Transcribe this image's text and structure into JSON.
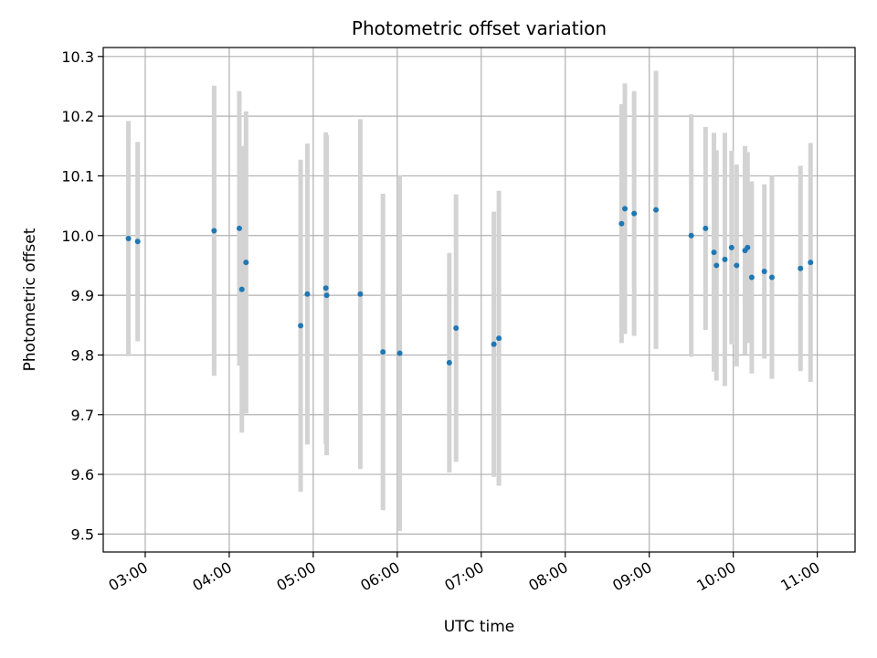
{
  "chart_data": {
    "type": "scatter",
    "title": "Photometric offset variation",
    "xlabel": "UTC time",
    "ylabel": "Photometric offset",
    "grid": true,
    "x_unit": "hours (UTC)",
    "xlim": [
      2.5,
      11.45
    ],
    "ylim": [
      9.47,
      10.315
    ],
    "x_ticks": [
      3,
      4,
      5,
      6,
      7,
      8,
      9,
      10,
      11
    ],
    "x_tick_labels": [
      "03:00",
      "04:00",
      "05:00",
      "06:00",
      "07:00",
      "08:00",
      "09:00",
      "10:00",
      "11:00"
    ],
    "y_ticks": [
      9.5,
      9.6,
      9.7,
      9.8,
      9.9,
      10.0,
      10.1,
      10.2,
      10.3
    ],
    "y_tick_labels": [
      "9.5",
      "9.6",
      "9.7",
      "9.8",
      "9.9",
      "10.0",
      "10.1",
      "10.2",
      "10.3"
    ],
    "colors": {
      "points": "#1f77b4",
      "errorbars": "#d3d3d3",
      "grid": "#b0b0b0"
    },
    "series": [
      {
        "points": [
          {
            "x": 2.8,
            "y": 9.995,
            "err": 0.197
          },
          {
            "x": 2.91,
            "y": 9.99,
            "err": 0.167
          },
          {
            "x": 3.82,
            "y": 10.008,
            "err": 0.243
          },
          {
            "x": 4.12,
            "y": 10.012,
            "err": 0.23
          },
          {
            "x": 4.15,
            "y": 9.91,
            "err": 0.24
          },
          {
            "x": 4.2,
            "y": 9.955,
            "err": 0.253
          },
          {
            "x": 4.85,
            "y": 9.849,
            "err": 0.278
          },
          {
            "x": 4.93,
            "y": 9.902,
            "err": 0.252
          },
          {
            "x": 5.15,
            "y": 9.912,
            "err": 0.261
          },
          {
            "x": 5.16,
            "y": 9.9,
            "err": 0.268
          },
          {
            "x": 5.56,
            "y": 9.902,
            "err": 0.293
          },
          {
            "x": 5.83,
            "y": 9.805,
            "err": 0.265
          },
          {
            "x": 6.03,
            "y": 9.803,
            "err": 0.298
          },
          {
            "x": 6.62,
            "y": 9.787,
            "err": 0.184
          },
          {
            "x": 6.7,
            "y": 9.845,
            "err": 0.224
          },
          {
            "x": 7.15,
            "y": 9.818,
            "err": 0.222
          },
          {
            "x": 7.21,
            "y": 9.828,
            "err": 0.247
          },
          {
            "x": 8.67,
            "y": 10.02,
            "err": 0.2
          },
          {
            "x": 8.71,
            "y": 10.045,
            "err": 0.21
          },
          {
            "x": 8.82,
            "y": 10.037,
            "err": 0.205
          },
          {
            "x": 9.08,
            "y": 10.043,
            "err": 0.233
          },
          {
            "x": 9.5,
            "y": 10.0,
            "err": 0.203
          },
          {
            "x": 9.67,
            "y": 10.012,
            "err": 0.17
          },
          {
            "x": 9.77,
            "y": 9.972,
            "err": 0.2
          },
          {
            "x": 9.8,
            "y": 9.95,
            "err": 0.193
          },
          {
            "x": 9.9,
            "y": 9.96,
            "err": 0.212
          },
          {
            "x": 9.98,
            "y": 9.98,
            "err": 0.162
          },
          {
            "x": 10.04,
            "y": 9.95,
            "err": 0.169
          },
          {
            "x": 10.14,
            "y": 9.975,
            "err": 0.175
          },
          {
            "x": 10.17,
            "y": 9.98,
            "err": 0.16
          },
          {
            "x": 10.22,
            "y": 9.93,
            "err": 0.161
          },
          {
            "x": 10.37,
            "y": 9.94,
            "err": 0.146
          },
          {
            "x": 10.46,
            "y": 9.93,
            "err": 0.17
          },
          {
            "x": 10.8,
            "y": 9.945,
            "err": 0.172
          },
          {
            "x": 10.92,
            "y": 9.955,
            "err": 0.2
          }
        ]
      }
    ]
  }
}
